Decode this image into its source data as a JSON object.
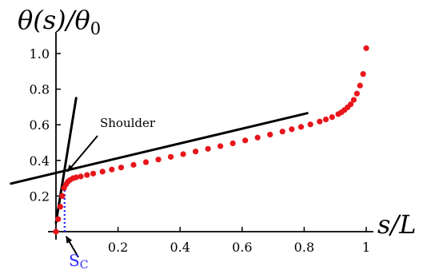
{
  "chart_data": {
    "type": "scatter",
    "ylabel": "θ(s)/θ",
    "ylabel_sub": "0",
    "xlabel": "s/L",
    "xlim": [
      0,
      1
    ],
    "ylim": [
      0,
      1.05
    ],
    "x_ticks": [
      "0.2",
      "0.4",
      "0.6",
      "0.8",
      "1"
    ],
    "y_ticks": [
      "0.2",
      "0.4",
      "0.6",
      "0.8",
      "1.0"
    ],
    "x_tick_values": [
      0.2,
      0.4,
      0.6,
      0.8,
      1.0
    ],
    "y_tick_values": [
      0.2,
      0.4,
      0.6,
      0.8,
      1.0
    ],
    "grid": false,
    "colors": {
      "points": "#e8151b",
      "fit_lines": "#000000",
      "sc_marker": "#2a2aff"
    },
    "points": {
      "x": [
        0.0,
        0.007,
        0.014,
        0.02,
        0.026,
        0.032,
        0.038,
        0.045,
        0.055,
        0.065,
        0.08,
        0.1,
        0.12,
        0.15,
        0.18,
        0.21,
        0.25,
        0.29,
        0.33,
        0.37,
        0.41,
        0.45,
        0.49,
        0.53,
        0.57,
        0.61,
        0.65,
        0.69,
        0.73,
        0.76,
        0.79,
        0.82,
        0.85,
        0.87,
        0.89,
        0.91,
        0.92,
        0.93,
        0.94,
        0.95,
        0.96,
        0.97,
        0.98,
        0.99,
        1.0
      ],
      "y": [
        0.0,
        0.07,
        0.14,
        0.2,
        0.245,
        0.265,
        0.28,
        0.29,
        0.3,
        0.305,
        0.31,
        0.318,
        0.326,
        0.337,
        0.349,
        0.36,
        0.375,
        0.39,
        0.405,
        0.42,
        0.435,
        0.45,
        0.465,
        0.48,
        0.496,
        0.512,
        0.528,
        0.545,
        0.562,
        0.575,
        0.588,
        0.602,
        0.618,
        0.63,
        0.643,
        0.66,
        0.67,
        0.683,
        0.698,
        0.715,
        0.74,
        0.775,
        0.82,
        0.885,
        1.03
      ]
    },
    "fit_lines": [
      {
        "x": [
          -0.145,
          0.81
        ],
        "y": [
          0.27,
          0.665
        ]
      },
      {
        "x": [
          0.0,
          0.065
        ],
        "y": [
          0.05,
          0.75
        ]
      }
    ],
    "sc": {
      "x": 0.028,
      "label": "S",
      "label_sub": "C"
    },
    "annotations": [
      {
        "text": "Shoulder",
        "target": [
          0.022,
          0.32
        ]
      }
    ]
  }
}
